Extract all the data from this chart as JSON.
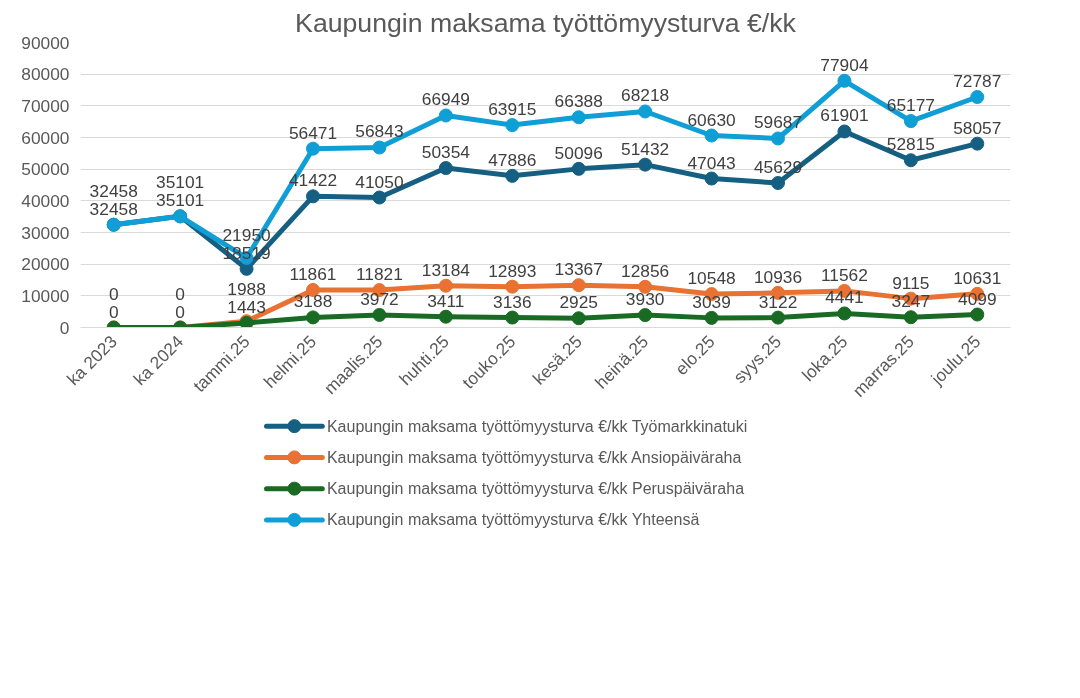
{
  "chart_data": {
    "type": "line",
    "title": "Kaupungin maksama työttömyysturva €/kk",
    "categories": [
      "ka 2023",
      "ka 2024",
      "tammi.25",
      "helmi.25",
      "maalis.25",
      "huhti.25",
      "touko.25",
      "kesä.25",
      "heinä.25",
      "elo.25",
      "syys.25",
      "loka.25",
      "marras.25",
      "joulu.25"
    ],
    "series": [
      {
        "name": "Kaupungin maksama työttömyysturva €/kk Työmarkkinatuki",
        "color": "#156082",
        "values": [
          32458,
          35101,
          18519,
          41422,
          41050,
          50354,
          47886,
          50096,
          51432,
          47043,
          45629,
          61901,
          52815,
          58057
        ]
      },
      {
        "name": "Kaupungin maksama työttömyysturva €/kk Ansiopäiväraha",
        "color": "#e97132",
        "values": [
          0,
          0,
          1988,
          11861,
          11821,
          13184,
          12893,
          13367,
          12856,
          10548,
          10936,
          11562,
          9115,
          10631
        ]
      },
      {
        "name": "Kaupungin maksama työttömyysturva €/kk Peruspäiväraha",
        "color": "#196b24",
        "values": [
          0,
          0,
          1443,
          3188,
          3972,
          3411,
          3136,
          2925,
          3930,
          3039,
          3122,
          4441,
          3247,
          4099
        ]
      },
      {
        "name": "Kaupungin maksama työttömyysturva €/kk Yhteensä",
        "color": "#0f9ed5",
        "values": [
          32458,
          35101,
          21950,
          56471,
          56843,
          66949,
          63915,
          66388,
          68218,
          60630,
          59687,
          77904,
          65177,
          72787
        ]
      }
    ],
    "ylim": [
      0,
      90000
    ],
    "yticks": [
      0,
      10000,
      20000,
      30000,
      40000,
      50000,
      60000,
      70000,
      80000,
      90000
    ],
    "grid": "y",
    "legend": "bottom",
    "marker": "circle",
    "line_style": "solid",
    "data_labels": true
  }
}
